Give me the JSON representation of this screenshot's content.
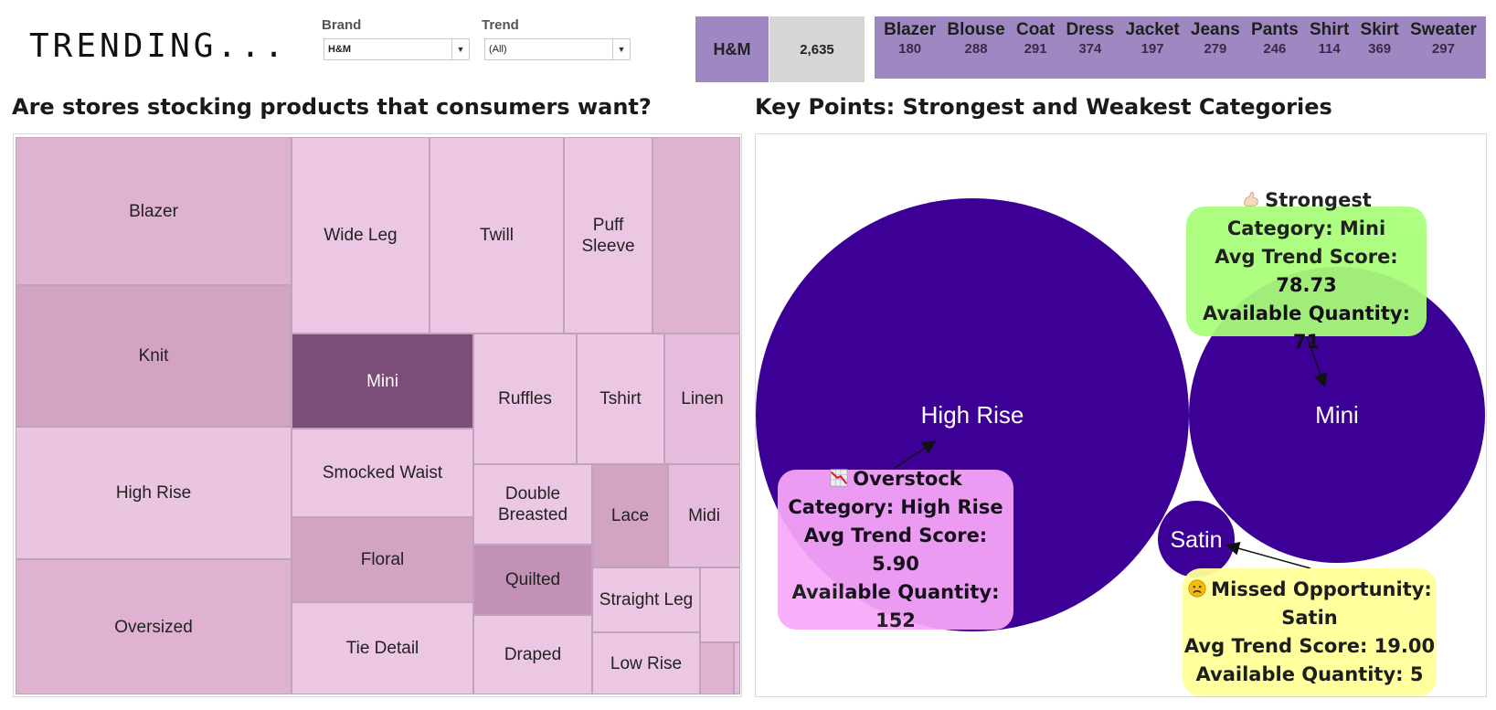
{
  "header": {
    "logo": "TRENDING...",
    "brand_filter": {
      "label": "Brand",
      "value": "H&M"
    },
    "trend_filter": {
      "label": "Trend",
      "value": "(All)"
    },
    "kpi": {
      "brand": "H&M",
      "total": "2,635"
    },
    "categories": [
      {
        "name": "Blazer",
        "value": "180"
      },
      {
        "name": "Blouse",
        "value": "288"
      },
      {
        "name": "Coat",
        "value": "291"
      },
      {
        "name": "Dress",
        "value": "374"
      },
      {
        "name": "Jacket",
        "value": "197"
      },
      {
        "name": "Jeans",
        "value": "279"
      },
      {
        "name": "Pants",
        "value": "246"
      },
      {
        "name": "Shirt",
        "value": "114"
      },
      {
        "name": "Skirt",
        "value": "369"
      },
      {
        "name": "Sweater",
        "value": "297"
      }
    ]
  },
  "left": {
    "title": "Are stores stocking products that consumers want?",
    "treemap": [
      {
        "label": "Blazer",
        "color": "#e0b2d2"
      },
      {
        "label": "Knit",
        "color": "#d3a3c4"
      },
      {
        "label": "High Rise",
        "color": "#eac5e2"
      },
      {
        "label": "Oversized",
        "color": "#e0b2d2"
      },
      {
        "label": "Wide Leg",
        "color": "#ecc7e3"
      },
      {
        "label": "Twill",
        "color": "#ecc7e3"
      },
      {
        "label": "Puff Sleeve",
        "color": "#ecc7e3"
      },
      {
        "label": "",
        "color": "#e0b2d2"
      },
      {
        "label": "Mini",
        "color": "#7b4d78",
        "text_color": "#ffffff"
      },
      {
        "label": "Ruffles",
        "color": "#ecc7e3"
      },
      {
        "label": "Tshirt",
        "color": "#ecc7e3"
      },
      {
        "label": "Linen",
        "color": "#e6bcdc"
      },
      {
        "label": "Smocked Waist",
        "color": "#ecc7e3"
      },
      {
        "label": "Double Breasted",
        "color": "#ecc7e3"
      },
      {
        "label": "Lace",
        "color": "#d3a3c4"
      },
      {
        "label": "Midi",
        "color": "#e6bcdc"
      },
      {
        "label": "Floral",
        "color": "#d3a3c4"
      },
      {
        "label": "Quilted",
        "color": "#c391b5"
      },
      {
        "label": "Straight Leg",
        "color": "#ecc7e3"
      },
      {
        "label": "",
        "color": "#ecc7e3"
      },
      {
        "label": "Tie Detail",
        "color": "#ecc7e3"
      },
      {
        "label": "Draped",
        "color": "#ecc7e3"
      },
      {
        "label": "Low Rise",
        "color": "#ecc7e3"
      },
      {
        "label": "",
        "color": "#e0b2d2"
      },
      {
        "label": "",
        "color": "#e6bcdc"
      }
    ]
  },
  "right": {
    "title": "Key Points: Strongest and Weakest Categories",
    "bubbles": [
      {
        "label": "High Rise",
        "color": "#3d0097"
      },
      {
        "label": "Mini",
        "color": "#3d0097"
      },
      {
        "label": "Satin",
        "color": "#3d0097"
      }
    ],
    "callouts": {
      "strongest": {
        "icon": "flexed-arm-icon",
        "head": "Strongest",
        "lines": [
          "Category: Mini",
          "Avg Trend Score: 78.73",
          "Available Quantity: 71"
        ],
        "color": "#a8ff78"
      },
      "overstock": {
        "icon": "chart-decreasing-icon",
        "head": "Overstock",
        "lines": [
          "Category: High Rise",
          "Avg Trend Score: 5.90",
          "Available Quantity:",
          "152"
        ],
        "color": "#f9a8f9"
      },
      "missed": {
        "icon": "frowning-face-icon",
        "head": "Missed Opportunity:",
        "lines": [
          "Satin",
          "Avg Trend Score: 19.00",
          "Available Quantity: 5"
        ],
        "color": "#ffff99"
      }
    }
  }
}
